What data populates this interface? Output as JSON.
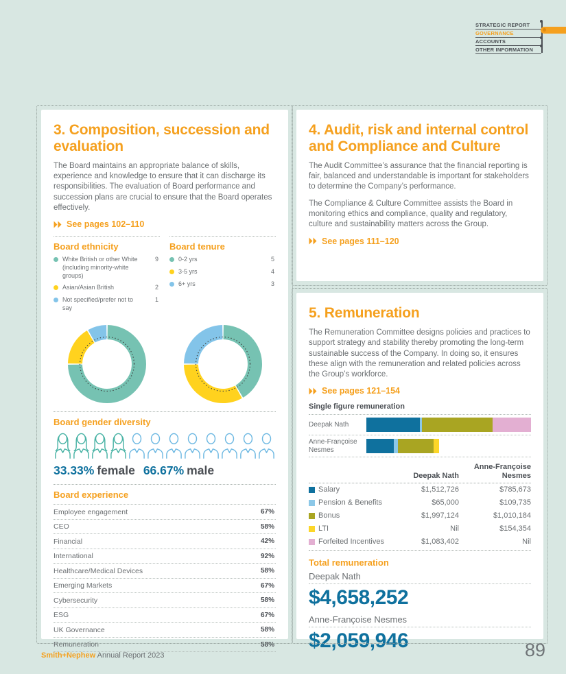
{
  "nav": {
    "items": [
      {
        "label": "STRATEGIC REPORT",
        "active": false
      },
      {
        "label": "GOVERNANCE",
        "active": true
      },
      {
        "label": "ACCOUNTS",
        "active": false
      },
      {
        "label": "OTHER INFORMATION",
        "active": false
      }
    ],
    "accent_color": "#f5a01e"
  },
  "cards": {
    "composition": {
      "title": "3. Composition, succession and evaluation",
      "body": "The Board maintains an appropriate balance of skills, experience and knowledge to ensure that it can discharge its responsibilities. The evaluation of Board performance and succession plans are crucial to ensure that the Board operates effectively.",
      "link": "See pages 102–110"
    },
    "audit": {
      "title": "4. Audit, risk and internal control and Compliance and Culture",
      "body1": "The Audit Committee’s assurance that the financial reporting is fair, balanced and understandable is important for stakeholders to determine the Company’s performance.",
      "body2": "The Compliance & Culture Committee assists the Board in monitoring ethics and compliance, quality and regulatory, culture and sustainability matters across the Group.",
      "link": "See pages 111–120"
    },
    "remuneration": {
      "title": "5. Remuneration",
      "body": "The Remuneration Committee designs policies and practices to support strategy and stability thereby promoting the long-term sustainable success of the Company. In doing so, it ensures these align with the remuneration and related policies across the Group’s workforce.",
      "link": "See pages 121–154",
      "chart_title": "Single figure remuneration",
      "table": {
        "columns": [
          "Deepak Nath",
          "Anne-Françoise Nesmes"
        ],
        "rows": [
          {
            "label": "Salary",
            "color": "#0f719e",
            "values": [
              "$1,512,726",
              "$785,673"
            ]
          },
          {
            "label": "Pension & Benefits",
            "color": "#8cc8e8",
            "values": [
              "$65,000",
              "$109,735"
            ]
          },
          {
            "label": "Bonus",
            "color": "#a9a522",
            "values": [
              "$1,997,124",
              "$1,010,184"
            ]
          },
          {
            "label": "LTI",
            "color": "#fcd629",
            "values": [
              "Nil",
              "$154,354"
            ]
          },
          {
            "label": "Forfeited Incentives",
            "color": "#e3afd2",
            "values": [
              "$1,083,402",
              "Nil"
            ]
          }
        ]
      },
      "totals": {
        "heading": "Total remuneration",
        "items": [
          {
            "name": "Deepak Nath",
            "amount": "$4,658,252"
          },
          {
            "name": "Anne-Françoise Nesmes",
            "amount": "$2,059,946"
          }
        ]
      }
    }
  },
  "chart_data": [
    {
      "id": "board-ethnicity",
      "type": "pie",
      "donut": true,
      "title": "Board ethnicity",
      "labels": [
        "White British or other White (including minority-white groups)",
        "Asian/Asian British",
        "Not specified/prefer not to say"
      ],
      "values": [
        9,
        2,
        1
      ],
      "colors": [
        "#76c2b2",
        "#ffd21e",
        "#83c4e9"
      ],
      "legend_position": "top"
    },
    {
      "id": "board-tenure",
      "type": "pie",
      "donut": true,
      "title": "Board tenure",
      "labels": [
        "0-2 yrs",
        "3-5 yrs",
        "6+ yrs"
      ],
      "values": [
        5,
        4,
        3
      ],
      "colors": [
        "#76c2b2",
        "#ffd21e",
        "#83c4e9"
      ],
      "legend_position": "top"
    },
    {
      "id": "board-gender",
      "type": "pictogram",
      "title": "Board gender diversity",
      "categories": [
        "female",
        "male"
      ],
      "counts": [
        4,
        8
      ],
      "values_pct": [
        "33.33%",
        "66.67%"
      ],
      "icon_colors": [
        "#49b3a5",
        "#6db8e2"
      ]
    },
    {
      "id": "board-experience",
      "type": "bar",
      "orientation": "horizontal",
      "title": "Board experience",
      "categories": [
        "Employee engagement",
        "CEO",
        "Financial",
        "International",
        "Healthcare/Medical Devices",
        "Emerging Markets",
        "Cybersecurity",
        "ESG",
        "UK Governance",
        "Remuneration"
      ],
      "values": [
        67,
        58,
        42,
        92,
        58,
        67,
        58,
        67,
        58,
        58
      ],
      "unit": "%",
      "xlim": [
        0,
        100
      ],
      "bar_color": "#7ac2e8",
      "grid": false
    },
    {
      "id": "single-figure-remuneration",
      "type": "stacked-bar",
      "orientation": "horizontal",
      "title": "Single figure remuneration",
      "categories": [
        "Deepak Nath",
        "Anne-Françoise Nesmes"
      ],
      "series": [
        {
          "name": "Salary",
          "color": "#0f719e",
          "values": [
            1512726,
            785673
          ]
        },
        {
          "name": "Pension & Benefits",
          "color": "#8cc8e8",
          "values": [
            65000,
            109735
          ]
        },
        {
          "name": "Bonus",
          "color": "#a9a522",
          "values": [
            1997124,
            1010184
          ]
        },
        {
          "name": "LTI",
          "color": "#fcd629",
          "values": [
            0,
            154354
          ]
        },
        {
          "name": "Forfeited Incentives",
          "color": "#e3afd2",
          "values": [
            1083402,
            0
          ]
        }
      ],
      "totals": [
        4658252,
        2059946
      ]
    }
  ],
  "footer": {
    "brand": "Smith+Nephew",
    "text": " Annual Report 2023",
    "page_number": "89"
  }
}
